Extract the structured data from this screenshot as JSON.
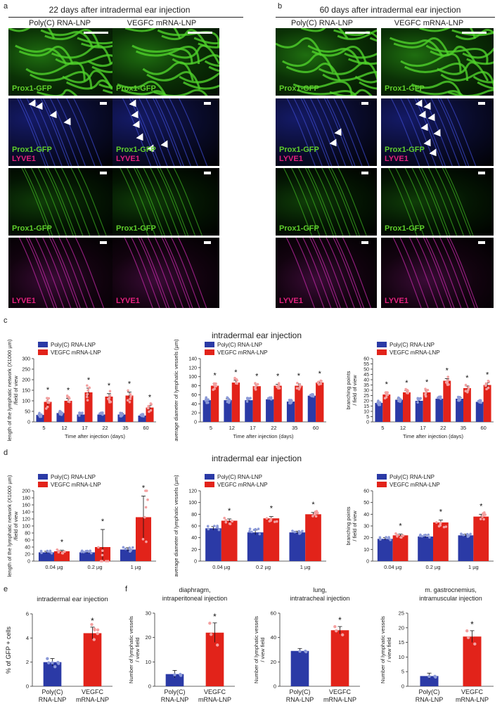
{
  "panels": {
    "a": {
      "letter": "a",
      "title": "22 days after intradermal ear injection",
      "col_left": "Poly(C) RNA-LNP",
      "col_right": "VEGFC mRNA-LNP"
    },
    "b": {
      "letter": "b",
      "title": "60 days after intradermal ear injection",
      "col_left": "Poly(C) RNA-LNP",
      "col_right": "VEGFC mRNA-LNP"
    },
    "c": {
      "letter": "c",
      "title": "intradermal ear injection"
    },
    "d": {
      "letter": "d",
      "title": "intradermal ear injection"
    },
    "e": {
      "letter": "e"
    },
    "f": {
      "letter": "f"
    }
  },
  "stain_labels": {
    "gfp": "Prox1-GFP",
    "lyve": "LYVE1"
  },
  "colors": {
    "blue": "#2b3aa6",
    "red": "#e2231a",
    "blue_dot": "#8c9ad8",
    "red_dot": "#f4a0a0",
    "gfp": "#5fcf2c",
    "lyve": "#e4217f"
  },
  "chart_data": [
    {
      "id": "c1",
      "type": "bar",
      "legend": [
        "Poly(C) RNA-LNP",
        "VEGFC mRNA-LNP"
      ],
      "categories": [
        "5",
        "12",
        "17",
        "22",
        "35",
        "60"
      ],
      "series": [
        {
          "name": "Poly(C) RNA-LNP",
          "values": [
            33,
            42,
            35,
            35,
            35,
            30
          ]
        },
        {
          "name": "VEGFC mRNA-LNP",
          "values": [
            95,
            100,
            140,
            120,
            125,
            68
          ]
        }
      ],
      "errors": [
        [
          4,
          4,
          5,
          3,
          3,
          3
        ],
        [
          18,
          12,
          20,
          14,
          16,
          10
        ]
      ],
      "sig": [
        true,
        true,
        true,
        true,
        true,
        true
      ],
      "ylabel": "length of the lymphatic network (X1000 µm) /field of view",
      "xlabel": "Time after injection (days)",
      "ylim": [
        0,
        300
      ],
      "yticks": [
        "0",
        "50",
        "100",
        "150",
        "200",
        "250",
        "300"
      ]
    },
    {
      "id": "c2",
      "type": "bar",
      "legend": [
        "Poly(C) RNA-LNP",
        "VEGFC mRNA-LNP"
      ],
      "categories": [
        "5",
        "12",
        "17",
        "22",
        "35",
        "60"
      ],
      "series": [
        {
          "name": "Poly(C) RNA-LNP",
          "values": [
            48,
            48,
            48,
            50,
            45,
            58
          ]
        },
        {
          "name": "VEGFC mRNA-LNP",
          "values": [
            80,
            87,
            79,
            80,
            80,
            87
          ]
        }
      ],
      "errors": [
        [
          3,
          3,
          3,
          2,
          2,
          2
        ],
        [
          5,
          5,
          4,
          3,
          4,
          2
        ]
      ],
      "sig": [
        true,
        true,
        true,
        true,
        true,
        true
      ],
      "ylabel": "average diameter of lymphatic vessels (µm)",
      "xlabel": "Time after injection (days)",
      "ylim": [
        0,
        140
      ],
      "yticks": [
        "0",
        "20",
        "40",
        "60",
        "80",
        "100",
        "120",
        "140"
      ]
    },
    {
      "id": "c3",
      "type": "bar",
      "legend": [
        "Poly(C) RNA-LNP",
        "VEGFC mRNA-LNP"
      ],
      "categories": [
        "5",
        "12",
        "17",
        "22",
        "35",
        "60"
      ],
      "series": [
        {
          "name": "Poly(C) RNA-LNP",
          "values": [
            18,
            21,
            20,
            22,
            22,
            19
          ]
        },
        {
          "name": "VEGFC mRNA-LNP",
          "values": [
            26,
            28,
            28,
            39,
            32,
            35
          ]
        }
      ],
      "errors": [
        [
          1,
          1,
          1.5,
          1,
          1,
          1
        ],
        [
          2,
          1.5,
          2,
          2,
          2,
          2
        ]
      ],
      "sig": [
        true,
        true,
        true,
        true,
        true,
        true
      ],
      "ylabel": "branching points / field of view",
      "xlabel": "Time after injection (days)",
      "ylim": [
        0,
        60
      ],
      "yticks": [
        "0",
        "5",
        "10",
        "15",
        "20",
        "25",
        "30",
        "35",
        "40",
        "45",
        "50",
        "55",
        "60"
      ]
    },
    {
      "id": "d1",
      "type": "bar",
      "legend": [
        "Poly(C) RNA-LNP",
        "VEGFC mRNA-LNP"
      ],
      "categories": [
        "0.04 µg",
        "0.2 µg",
        "1 µg"
      ],
      "series": [
        {
          "name": "Poly(C) RNA-LNP",
          "values": [
            25,
            25,
            33
          ]
        },
        {
          "name": "VEGFC mRNA-LNP",
          "values": [
            28,
            40,
            125
          ]
        }
      ],
      "errors": [
        [
          3,
          3,
          5
        ],
        [
          3,
          50,
          60
        ]
      ],
      "sig": [
        true,
        true,
        true
      ],
      "ylabel": "length of the lymphatic network (X1000 µm) /field of view",
      "xlabel": "",
      "ylim": [
        0,
        200
      ],
      "yticks": [
        "0",
        "20",
        "40",
        "60",
        "80",
        "100",
        "120",
        "140",
        "160",
        "180",
        "200"
      ]
    },
    {
      "id": "d2",
      "type": "bar",
      "legend": [
        "Poly(C) RNA-LNP",
        "VEGFC mRNA-LNP"
      ],
      "categories": [
        "0.04 µg",
        "0.2 µg",
        "1 µg"
      ],
      "series": [
        {
          "name": "Poly(C) RNA-LNP",
          "values": [
            56,
            49,
            49
          ]
        },
        {
          "name": "VEGFC mRNA-LNP",
          "values": [
            69,
            73,
            80
          ]
        }
      ],
      "errors": [
        [
          3,
          4,
          2
        ],
        [
          3,
          3,
          3
        ]
      ],
      "sig": [
        true,
        true,
        true
      ],
      "ylabel": "average diameter of lymphatic vessels (µm)",
      "xlabel": "",
      "ylim": [
        0,
        120
      ],
      "yticks": [
        "0",
        "20",
        "40",
        "60",
        "80",
        "100",
        "120"
      ]
    },
    {
      "id": "d3",
      "type": "bar",
      "legend": [
        "Poly(C) RNA-LNP",
        "VEGFC mRNA-LNP"
      ],
      "categories": [
        "0.04 µg",
        "0.2 µg",
        "1 µg"
      ],
      "series": [
        {
          "name": "Poly(C) RNA-LNP",
          "values": [
            19,
            21,
            22
          ]
        },
        {
          "name": "VEGFC mRNA-LNP",
          "values": [
            22,
            33,
            38
          ]
        }
      ],
      "errors": [
        [
          1,
          1,
          1
        ],
        [
          1,
          2,
          2
        ]
      ],
      "sig": [
        true,
        true,
        true
      ],
      "ylabel": "branching points / field of view",
      "xlabel": "",
      "ylim": [
        0,
        60
      ],
      "yticks": [
        "0",
        "10",
        "20",
        "30",
        "40",
        "50",
        "60"
      ]
    },
    {
      "id": "e1",
      "type": "bar",
      "title": "intradermal ear injection",
      "categories": [
        "Poly(C)\nRNA-LNP",
        "VEGFC\nmRNA-LNP"
      ],
      "series": [
        {
          "name": "",
          "values": [
            2.0,
            4.4
          ]
        }
      ],
      "errors": [
        [
          0.3,
          0.5
        ]
      ],
      "sig": [
        false,
        true
      ],
      "ylabel": "% of GFP + cells",
      "ylim": [
        0,
        6
      ],
      "yticks": [
        "0",
        "2",
        "4",
        "6"
      ]
    },
    {
      "id": "f1",
      "type": "bar",
      "title": "diaphragm,\nintraperitoneal injection",
      "categories": [
        "Poly(C)\nRNA-LNP",
        "VEGFC\nmRNA-LNP"
      ],
      "series": [
        {
          "name": "",
          "values": [
            5,
            22
          ]
        }
      ],
      "errors": [
        [
          1.5,
          4
        ]
      ],
      "sig": [
        false,
        true
      ],
      "ylabel": "Number of lymphatic vessels / view field",
      "ylim": [
        0,
        30
      ],
      "yticks": [
        "0",
        "10",
        "20",
        "30"
      ]
    },
    {
      "id": "f2",
      "type": "bar",
      "title": "lung,\nintratracheal injection",
      "categories": [
        "Poly(C)\nRNA-LNP",
        "VEGFC\nmRNA-LNP"
      ],
      "series": [
        {
          "name": "",
          "values": [
            29,
            46
          ]
        }
      ],
      "errors": [
        [
          2,
          3
        ]
      ],
      "sig": [
        false,
        true
      ],
      "ylabel": "Number of lymphatic vessels / view field",
      "ylim": [
        0,
        60
      ],
      "yticks": [
        "0",
        "20",
        "40",
        "60"
      ]
    },
    {
      "id": "f3",
      "type": "bar",
      "title": "m. gastrocnemius,\nintramuscular injection",
      "categories": [
        "Poly(C)\nRNA-LNP",
        "VEGFC\nmRNA-LNP"
      ],
      "series": [
        {
          "name": "",
          "values": [
            3.5,
            17
          ]
        }
      ],
      "errors": [
        [
          1,
          2
        ]
      ],
      "sig": [
        false,
        true
      ],
      "ylabel": "Number of lymphatic vessels / view field",
      "ylim": [
        0,
        25
      ],
      "yticks": [
        "0",
        "5",
        "10",
        "15",
        "20",
        "25"
      ]
    }
  ]
}
